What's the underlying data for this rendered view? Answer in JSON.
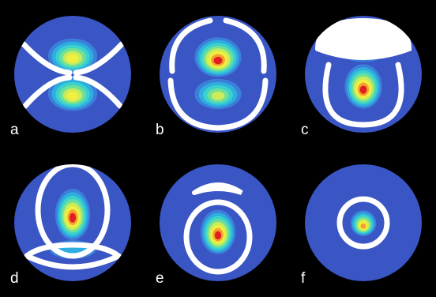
{
  "colors": {
    "background": "#000000",
    "disk": "#3a55c4",
    "contour_levels": [
      "#3a55c4",
      "#3c7fd9",
      "#2eaee0",
      "#3cd1cc",
      "#6fe09a",
      "#c8ec5a",
      "#f0f040",
      "#f5a030",
      "#e02020"
    ],
    "nodal_line": "#ffffff",
    "label_text": "#ffffff"
  },
  "panels": [
    {
      "label": "a",
      "lobes": [
        {
          "dy": -0.32,
          "rx": 0.42,
          "ry": 0.3,
          "peak": 6
        },
        {
          "dy": 0.32,
          "rx": 0.42,
          "ry": 0.3,
          "peak": 6
        }
      ],
      "rings": [
        "nodal-pair-side"
      ]
    },
    {
      "label": "b",
      "lobes": [
        {
          "dy": -0.3,
          "rx": 0.4,
          "ry": 0.34,
          "peak": 8
        },
        {
          "dy": 0.33,
          "rx": 0.4,
          "ry": 0.26,
          "peak": 5
        }
      ],
      "rings": [
        "nodal-outer-pair"
      ]
    },
    {
      "label": "c",
      "lobes": [
        {
          "dy": -0.42,
          "rx": 0.42,
          "ry": 0.2,
          "peak": 3
        },
        {
          "dy": 0.2,
          "rx": 0.32,
          "ry": 0.38,
          "peak": 8
        }
      ],
      "rings": [
        "nodal-top-cap",
        "nodal-bottom-shell"
      ]
    },
    {
      "label": "d",
      "lobes": [
        {
          "dy": -0.15,
          "rx": 0.3,
          "ry": 0.44,
          "peak": 8
        },
        {
          "dy": 0.45,
          "rx": 0.4,
          "ry": 0.16,
          "peak": 2
        }
      ],
      "rings": [
        "nodal-top-shell",
        "nodal-bottom-cap"
      ]
    },
    {
      "label": "e",
      "lobes": [
        {
          "dy": 0.15,
          "rx": 0.3,
          "ry": 0.38,
          "peak": 8
        }
      ],
      "rings": [
        "nodal-top-arc",
        "nodal-inner-shell"
      ]
    },
    {
      "label": "f",
      "lobes": [
        {
          "dy": 0.0,
          "rx": 0.22,
          "ry": 0.22,
          "peak": 7
        }
      ],
      "rings": [
        "nodal-circle"
      ]
    }
  ]
}
